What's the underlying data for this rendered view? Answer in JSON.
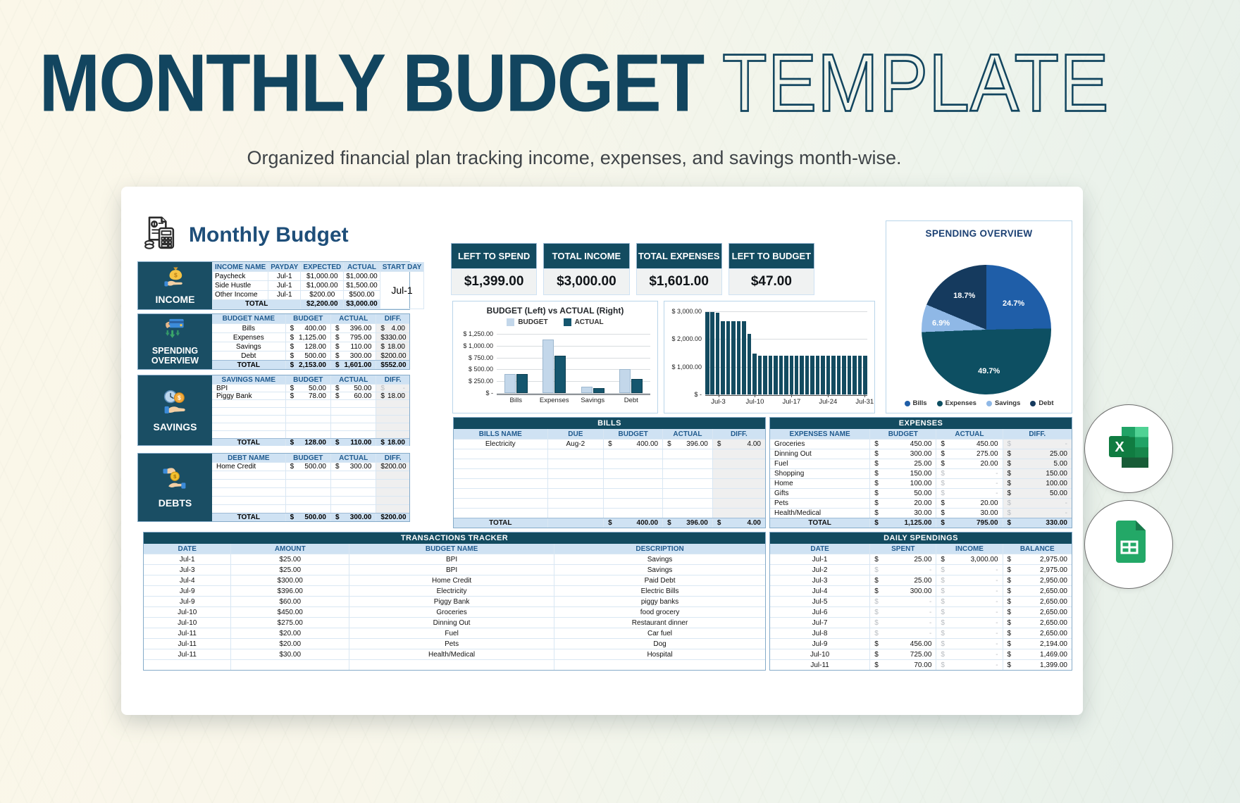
{
  "header": {
    "title_bold": "MONTHLY BUDGET",
    "title_light": "TEMPLATE",
    "subtitle": "Organized financial plan tracking income, expenses, and savings month-wise."
  },
  "sheet": {
    "title": "Monthly Budget"
  },
  "kpis": [
    {
      "label": "LEFT TO SPEND",
      "value": "$1,399.00"
    },
    {
      "label": "TOTAL INCOME",
      "value": "$3,000.00"
    },
    {
      "label": "TOTAL EXPENSES",
      "value": "$1,601.00"
    },
    {
      "label": "LEFT TO BUDGET",
      "value": "$47.00"
    }
  ],
  "icons": {
    "brand": "receipt-calculator-icon",
    "income": "money-bag-hand-icon",
    "spending": "credit-card-hand-icon",
    "savings": "clock-coin-hand-icon",
    "debts": "hand-giving-money-icon",
    "badge_top": "excel-icon",
    "badge_bottom": "google-sheets-icon"
  },
  "left": {
    "income": {
      "section": "INCOME",
      "headers": [
        "INCOME NAME",
        "PAYDAY",
        "EXPECTED",
        "ACTUAL",
        "START DAY"
      ],
      "rows": [
        [
          "Paycheck",
          "Jul-1",
          "$1,000.00",
          "$1,000.00"
        ],
        [
          "Side Hustle",
          "Jul-1",
          "$1,000.00",
          "$1,500.00"
        ],
        [
          "Other Income",
          "Jul-1",
          "$200.00",
          "$500.00"
        ]
      ],
      "total_label": "TOTAL",
      "total": [
        "$2,200.00",
        "$3,000.00"
      ],
      "start_day": "Jul-1"
    },
    "spending": {
      "section": "SPENDING OVERVIEW",
      "headers": [
        "BUDGET NAME",
        "BUDGET",
        "ACTUAL",
        "DIFF."
      ],
      "rows": [
        [
          "Bills",
          "400.00",
          "396.00",
          "4.00"
        ],
        [
          "Expenses",
          "1,125.00",
          "795.00",
          "330.00"
        ],
        [
          "Savings",
          "128.00",
          "110.00",
          "18.00"
        ],
        [
          "Debt",
          "500.00",
          "300.00",
          "200.00"
        ]
      ],
      "total": [
        "TOTAL",
        "2,153.00",
        "1,601.00",
        "552.00"
      ]
    },
    "savings": {
      "section": "SAVINGS",
      "headers": [
        "SAVINGS NAME",
        "BUDGET",
        "ACTUAL",
        "DIFF."
      ],
      "rows": [
        [
          "BPI",
          "50.00",
          "50.00",
          "-"
        ],
        [
          "Piggy Bank",
          "78.00",
          "60.00",
          "18.00"
        ]
      ],
      "empty_rows": 5,
      "total": [
        "TOTAL",
        "128.00",
        "110.00",
        "18.00"
      ]
    },
    "debts": {
      "section": "DEBTS",
      "headers": [
        "DEBT NAME",
        "BUDGET",
        "ACTUAL",
        "DIFF."
      ],
      "rows": [
        [
          "Home Credit",
          "500.00",
          "300.00",
          "200.00"
        ]
      ],
      "empty_rows": 5,
      "total": [
        "TOTAL",
        "500.00",
        "300.00",
        "200.00"
      ]
    }
  },
  "tables": {
    "bills": {
      "title": "BILLS",
      "headers": [
        "BILLS NAME",
        "DUE",
        "BUDGET",
        "ACTUAL",
        "DIFF."
      ],
      "rows": [
        [
          "Electricity",
          "Aug-2",
          "400.00",
          "396.00",
          "4.00"
        ]
      ],
      "empty_rows": 7,
      "total": [
        "TOTAL",
        "",
        "400.00",
        "396.00",
        "4.00"
      ]
    },
    "expenses": {
      "title": "EXPENSES",
      "headers": [
        "EXPENSES NAME",
        "BUDGET",
        "ACTUAL",
        "DIFF."
      ],
      "rows": [
        [
          "Groceries",
          "450.00",
          "450.00",
          "-"
        ],
        [
          "Dinning Out",
          "300.00",
          "275.00",
          "25.00"
        ],
        [
          "Fuel",
          "25.00",
          "20.00",
          "5.00"
        ],
        [
          "Shopping",
          "150.00",
          "-",
          "150.00"
        ],
        [
          "Home",
          "100.00",
          "-",
          "100.00"
        ],
        [
          "Gifts",
          "50.00",
          "-",
          "50.00"
        ],
        [
          "Pets",
          "20.00",
          "20.00",
          "-"
        ],
        [
          "Health/Medical",
          "30.00",
          "30.00",
          "-"
        ]
      ],
      "empty_rows": 0,
      "total": [
        "TOTAL",
        "1,125.00",
        "795.00",
        "330.00"
      ]
    },
    "transactions": {
      "title": "TRANSACTIONS TRACKER",
      "headers": [
        "DATE",
        "AMOUNT",
        "BUDGET NAME",
        "DESCRIPTION"
      ],
      "rows": [
        [
          "Jul-1",
          "$25.00",
          "BPI",
          "Savings"
        ],
        [
          "Jul-3",
          "$25.00",
          "BPI",
          "Savings"
        ],
        [
          "Jul-4",
          "$300.00",
          "Home Credit",
          "Paid Debt"
        ],
        [
          "Jul-9",
          "$396.00",
          "Electricity",
          "Electric Bills"
        ],
        [
          "Jul-9",
          "$60.00",
          "Piggy Bank",
          "piggy banks"
        ],
        [
          "Jul-10",
          "$450.00",
          "Groceries",
          "food grocery"
        ],
        [
          "Jul-10",
          "$275.00",
          "Dinning Out",
          "Restaurant dinner"
        ],
        [
          "Jul-11",
          "$20.00",
          "Fuel",
          "Car fuel"
        ],
        [
          "Jul-11",
          "$20.00",
          "Pets",
          "Dog"
        ],
        [
          "Jul-11",
          "$30.00",
          "Health/Medical",
          "Hospital"
        ]
      ],
      "empty_rows": 1
    },
    "daily": {
      "title": "DAILY SPENDINGS",
      "headers": [
        "DATE",
        "SPENT",
        "INCOME",
        "BALANCE"
      ],
      "rows": [
        [
          "Jul-1",
          "25.00",
          "3,000.00",
          "2,975.00"
        ],
        [
          "Jul-2",
          "-",
          "-",
          "2,975.00"
        ],
        [
          "Jul-3",
          "25.00",
          "-",
          "2,950.00"
        ],
        [
          "Jul-4",
          "300.00",
          "-",
          "2,650.00"
        ],
        [
          "Jul-5",
          "-",
          "-",
          "2,650.00"
        ],
        [
          "Jul-6",
          "-",
          "-",
          "2,650.00"
        ],
        [
          "Jul-7",
          "-",
          "-",
          "2,650.00"
        ],
        [
          "Jul-8",
          "-",
          "-",
          "2,650.00"
        ],
        [
          "Jul-9",
          "456.00",
          "-",
          "2,194.00"
        ],
        [
          "Jul-10",
          "725.00",
          "-",
          "1,469.00"
        ],
        [
          "Jul-11",
          "70.00",
          "-",
          "1,399.00"
        ]
      ],
      "empty_rows": 0
    }
  },
  "colors": {
    "dark_teal": "#134b60",
    "sidebar_teal": "#1a4e64",
    "header_blue_bg": "#cfe2f3",
    "header_blue_text": "#1f5a8e",
    "diff_gray": "#efefef",
    "budget_bar": "#c3d7ea",
    "actual_bar": "#15566e",
    "title_navy": "#12455f"
  },
  "chart_data": [
    {
      "type": "bar",
      "title": "BUDGET (Left) vs ACTUAL (Right)",
      "categories": [
        "Bills",
        "Expenses",
        "Savings",
        "Debt"
      ],
      "series": [
        {
          "name": "BUDGET",
          "color": "#c3d7ea",
          "values": [
            400,
            1125,
            128,
            500
          ]
        },
        {
          "name": "ACTUAL",
          "color": "#15566e",
          "values": [
            396,
            795,
            110,
            300
          ]
        }
      ],
      "ylim": [
        0,
        1250
      ],
      "yticks": [
        "$ 1,250.00",
        "$ 1,000.00",
        "$ 750.00",
        "$ 500.00",
        "$ 250.00",
        "$ -"
      ],
      "legend_position": "top",
      "grid": true
    },
    {
      "type": "bar",
      "title": "",
      "x_dates": [
        "Jul-1",
        "Jul-2",
        "Jul-3",
        "Jul-4",
        "Jul-5",
        "Jul-6",
        "Jul-7",
        "Jul-8",
        "Jul-9",
        "Jul-10",
        "Jul-11",
        "Jul-12",
        "Jul-13",
        "Jul-14",
        "Jul-15",
        "Jul-16",
        "Jul-17",
        "Jul-18",
        "Jul-19",
        "Jul-20",
        "Jul-21",
        "Jul-22",
        "Jul-23",
        "Jul-24",
        "Jul-25",
        "Jul-26",
        "Jul-27",
        "Jul-28",
        "Jul-29",
        "Jul-30",
        "Jul-31"
      ],
      "values": [
        2975,
        2975,
        2950,
        2650,
        2650,
        2650,
        2650,
        2650,
        2194,
        1469,
        1399,
        1399,
        1399,
        1399,
        1399,
        1399,
        1399,
        1399,
        1399,
        1399,
        1399,
        1399,
        1399,
        1399,
        1399,
        1399,
        1399,
        1399,
        1399,
        1399,
        1399
      ],
      "bar_color": "#134b60",
      "ylim": [
        0,
        3000
      ],
      "yticks": [
        "$ 3,000.00",
        "$ 2,000.00",
        "$ 1,000.00",
        "$ -"
      ],
      "xticks": [
        "Jul-3",
        "Jul-10",
        "Jul-17",
        "Jul-24",
        "Jul-31"
      ],
      "xtick_indices": [
        2,
        9,
        16,
        23,
        30
      ],
      "grid": true
    },
    {
      "type": "pie",
      "title": "SPENDING OVERVIEW",
      "labels": [
        "Bills",
        "Expenses",
        "Savings",
        "Debt"
      ],
      "values": [
        24.7,
        49.7,
        6.9,
        18.7
      ],
      "value_labels": [
        "24.7%",
        "49.7%",
        "6.9%",
        "18.7%"
      ],
      "colors": [
        "#1f5ea8",
        "#0d4f62",
        "#8fb8e6",
        "#153a5e"
      ],
      "legend_position": "bottom"
    }
  ]
}
